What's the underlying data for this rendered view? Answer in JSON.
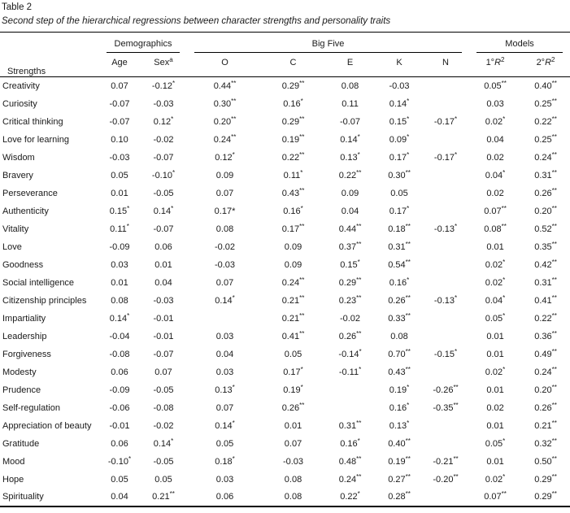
{
  "table": {
    "label": "Table 2",
    "caption": "Second step of the hierarchical regressions between character strengths and personality traits",
    "strengths_header": "Strengths",
    "groups": [
      {
        "label": "Demographics",
        "span": 2
      },
      {
        "label": "Big Five",
        "span": 5
      },
      {
        "label": "Models",
        "span": 2
      }
    ],
    "columns": [
      {
        "id": "age",
        "label": "Age"
      },
      {
        "id": "sex",
        "label": "Sex",
        "sup": "a"
      },
      {
        "id": "o",
        "label": "O"
      },
      {
        "id": "c",
        "label": "C"
      },
      {
        "id": "e",
        "label": "E"
      },
      {
        "id": "k",
        "label": "K"
      },
      {
        "id": "n",
        "label": "N"
      },
      {
        "id": "r2-first",
        "pre": "1°",
        "italic": "R",
        "sup": "2"
      },
      {
        "id": "r2-second",
        "pre": "2°",
        "italic": "R",
        "sup": "2"
      }
    ],
    "rows": [
      {
        "strength": "Creativity",
        "cells": [
          {
            "t": "0.07"
          },
          {
            "t": "-0.12",
            "sup": "*"
          },
          {
            "t": "0.44",
            "sup": "**"
          },
          {
            "t": "0.29",
            "sup": "**"
          },
          {
            "t": "0.08"
          },
          {
            "t": "-0.03"
          },
          null,
          {
            "t": "0.05",
            "sup": "**"
          },
          {
            "t": "0.40",
            "sup": "**"
          }
        ]
      },
      {
        "strength": "Curiosity",
        "cells": [
          {
            "t": "-0.07"
          },
          {
            "t": "-0.03"
          },
          {
            "t": "0.30",
            "sup": "**"
          },
          {
            "t": "0.16",
            "sup": "*"
          },
          {
            "t": "0.11"
          },
          {
            "t": "0.14",
            "sup": "*"
          },
          null,
          {
            "t": "0.03"
          },
          {
            "t": "0.25",
            "sup": "**"
          }
        ]
      },
      {
        "strength": "Critical thinking",
        "cells": [
          {
            "t": "-0.07"
          },
          {
            "t": "0.12",
            "sup": "*"
          },
          {
            "t": "0.20",
            "sup": "**"
          },
          {
            "t": "0.29",
            "sup": "**"
          },
          {
            "t": "-0.07"
          },
          {
            "t": "0.15",
            "sup": "*"
          },
          {
            "t": "-0.17",
            "sup": "*"
          },
          {
            "t": "0.02",
            "sup": "*"
          },
          {
            "t": "0.22",
            "sup": "**"
          }
        ]
      },
      {
        "strength": "Love for learning",
        "cells": [
          {
            "t": "0.10"
          },
          {
            "t": "-0.02"
          },
          {
            "t": "0.24",
            "sup": "**"
          },
          {
            "t": "0.19",
            "sup": "**"
          },
          {
            "t": "0.14",
            "sup": "*"
          },
          {
            "t": "0.09",
            "sup": "*"
          },
          null,
          {
            "t": "0.04"
          },
          {
            "t": "0.25",
            "sup": "**"
          }
        ]
      },
      {
        "strength": "Wisdom",
        "cells": [
          {
            "t": "-0.03"
          },
          {
            "t": "-0.07"
          },
          {
            "t": "0.12",
            "sup": "*"
          },
          {
            "t": "0.22",
            "sup": "**"
          },
          {
            "t": "0.13",
            "sup": "*"
          },
          {
            "t": "0.17",
            "sup": "*"
          },
          {
            "t": "-0.17",
            "sup": "*"
          },
          {
            "t": "0.02"
          },
          {
            "t": "0.24",
            "sup": "**"
          }
        ]
      },
      {
        "strength": "Bravery",
        "cells": [
          {
            "t": "0.05"
          },
          {
            "t": "-0.10",
            "sup": "*"
          },
          {
            "t": "0.09"
          },
          {
            "t": "0.11",
            "sup": "*"
          },
          {
            "t": "0.22",
            "sup": "**"
          },
          {
            "t": "0.30",
            "sup": "**"
          },
          null,
          {
            "t": "0.04",
            "sup": "*"
          },
          {
            "t": "0.31",
            "sup": "**"
          }
        ]
      },
      {
        "strength": "Perseverance",
        "cells": [
          {
            "t": "0.01"
          },
          {
            "t": "-0.05"
          },
          {
            "t": "0.07"
          },
          {
            "t": "0.43",
            "sup": "**"
          },
          {
            "t": "0.09"
          },
          {
            "t": "0.05"
          },
          null,
          {
            "t": "0.02"
          },
          {
            "t": "0.26",
            "sup": "**"
          }
        ]
      },
      {
        "strength": "Authenticity",
        "cells": [
          {
            "t": "0.15",
            "sup": "*"
          },
          {
            "t": "0.14",
            "sup": "*"
          },
          {
            "t": "0.17*"
          },
          {
            "t": "0.16",
            "sup": "*"
          },
          {
            "t": "0.04"
          },
          {
            "t": "0.17",
            "sup": "*"
          },
          null,
          {
            "t": "0.07",
            "sup": "**"
          },
          {
            "t": "0.20",
            "sup": "**"
          }
        ]
      },
      {
        "strength": "Vitality",
        "cells": [
          {
            "t": "0.11",
            "sup": "*"
          },
          {
            "t": "-0.07"
          },
          {
            "t": "0.08"
          },
          {
            "t": "0.17",
            "sup": "**"
          },
          {
            "t": "0.44",
            "sup": "**"
          },
          {
            "t": "0.18",
            "sup": "**"
          },
          {
            "t": "-0.13",
            "sup": "*"
          },
          {
            "t": "0.08",
            "sup": "**"
          },
          {
            "t": "0.52",
            "sup": "**"
          }
        ]
      },
      {
        "strength": "Love",
        "cells": [
          {
            "t": "-0.09"
          },
          {
            "t": "0.06"
          },
          {
            "t": "-0.02"
          },
          {
            "t": "0.09"
          },
          {
            "t": "0.37",
            "sup": "**"
          },
          {
            "t": "0.31",
            "sup": "**"
          },
          null,
          {
            "t": "0.01"
          },
          {
            "t": "0.35",
            "sup": "**"
          }
        ]
      },
      {
        "strength": "Goodness",
        "cells": [
          {
            "t": "0.03"
          },
          {
            "t": "0.01"
          },
          {
            "t": "-0.03"
          },
          {
            "t": "0.09"
          },
          {
            "t": "0.15",
            "sup": "*"
          },
          {
            "t": "0.54",
            "sup": "**"
          },
          null,
          {
            "t": "0.02",
            "sup": "*"
          },
          {
            "t": "0.42",
            "sup": "**"
          }
        ]
      },
      {
        "strength": "Social intelligence",
        "cells": [
          {
            "t": "0.01"
          },
          {
            "t": "0.04"
          },
          {
            "t": "0.07"
          },
          {
            "t": "0.24",
            "sup": "**"
          },
          {
            "t": "0.29",
            "sup": "**"
          },
          {
            "t": "0.16",
            "sup": "*"
          },
          null,
          {
            "t": "0.02",
            "sup": "*"
          },
          {
            "t": "0.31",
            "sup": "**"
          }
        ]
      },
      {
        "strength": "Citizenship principles",
        "cells": [
          {
            "t": "0.08"
          },
          {
            "t": "-0.03"
          },
          {
            "t": "0.14",
            "sup": "*"
          },
          {
            "t": "0.21",
            "sup": "**"
          },
          {
            "t": "0.23",
            "sup": "**"
          },
          {
            "t": "0.26",
            "sup": "**"
          },
          {
            "t": "-0.13",
            "sup": "*"
          },
          {
            "t": "0.04",
            "sup": "*"
          },
          {
            "t": "0.41",
            "sup": "**"
          }
        ]
      },
      {
        "strength": "Impartiality",
        "cells": [
          {
            "t": "0.14",
            "sup": "*"
          },
          {
            "t": "-0.01"
          },
          null,
          {
            "t": "0.21",
            "sup": "**"
          },
          {
            "t": "-0.02"
          },
          {
            "t": "0.33",
            "sup": "**"
          },
          null,
          {
            "t": "0.05",
            "sup": "*"
          },
          {
            "t": "0.22",
            "sup": "**"
          }
        ]
      },
      {
        "strength": "Leadership",
        "cells": [
          {
            "t": "-0.04"
          },
          {
            "t": "-0.01"
          },
          {
            "t": "0.03"
          },
          {
            "t": "0.41",
            "sup": "**"
          },
          {
            "t": "0.26",
            "sup": "**"
          },
          {
            "t": "0.08"
          },
          null,
          {
            "t": "0.01"
          },
          {
            "t": "0.36",
            "sup": "**"
          }
        ]
      },
      {
        "strength": "Forgiveness",
        "cells": [
          {
            "t": "-0.08"
          },
          {
            "t": "-0.07"
          },
          {
            "t": "0.04"
          },
          {
            "t": "0.05"
          },
          {
            "t": "-0.14",
            "sup": "*"
          },
          {
            "t": "0.70",
            "sup": "**"
          },
          {
            "t": "-0.15",
            "sup": "*"
          },
          {
            "t": "0.01"
          },
          {
            "t": "0.49",
            "sup": "**"
          }
        ]
      },
      {
        "strength": "Modesty",
        "cells": [
          {
            "t": "0.06"
          },
          {
            "t": "0.07"
          },
          {
            "t": "0.03"
          },
          {
            "t": "0.17",
            "sup": "*"
          },
          {
            "t": "-0.11",
            "sup": "*"
          },
          {
            "t": "0.43",
            "sup": "**"
          },
          null,
          {
            "t": "0.02",
            "sup": "*"
          },
          {
            "t": "0.24",
            "sup": "**"
          }
        ]
      },
      {
        "strength": "Prudence",
        "cells": [
          {
            "t": "-0.09"
          },
          {
            "t": "-0.05"
          },
          {
            "t": "0.13",
            "sup": "*"
          },
          {
            "t": "0.19",
            "sup": "*"
          },
          null,
          {
            "t": "0.19",
            "sup": "*"
          },
          {
            "t": "-0.26",
            "sup": "**"
          },
          {
            "t": "0.01"
          },
          {
            "t": "0.20",
            "sup": "**"
          }
        ]
      },
      {
        "strength": "Self-regulation",
        "cells": [
          {
            "t": "-0.06"
          },
          {
            "t": "-0.08"
          },
          {
            "t": "0.07"
          },
          {
            "t": "0.26",
            "sup": "**"
          },
          null,
          {
            "t": "0.16",
            "sup": "*"
          },
          {
            "t": "-0.35",
            "sup": "**"
          },
          {
            "t": "0.02"
          },
          {
            "t": "0.26",
            "sup": "**"
          }
        ]
      },
      {
        "strength": "Appreciation of beauty",
        "cells": [
          {
            "t": "-0.01"
          },
          {
            "t": "-0.02"
          },
          {
            "t": "0.14",
            "sup": "*"
          },
          {
            "t": "0.01"
          },
          {
            "t": "0.31",
            "sup": "**"
          },
          {
            "t": "0.13",
            "sup": "*"
          },
          null,
          {
            "t": "0.01"
          },
          {
            "t": "0.21",
            "sup": "**"
          }
        ]
      },
      {
        "strength": "Gratitude",
        "cells": [
          {
            "t": "0.06"
          },
          {
            "t": "0.14",
            "sup": "*"
          },
          {
            "t": "0.05"
          },
          {
            "t": "0.07"
          },
          {
            "t": "0.16",
            "sup": "*"
          },
          {
            "t": "0.40",
            "sup": "**"
          },
          null,
          {
            "t": "0.05",
            "sup": "*"
          },
          {
            "t": "0.32",
            "sup": "**"
          }
        ]
      },
      {
        "strength": "Mood",
        "cells": [
          {
            "t": "-0.10",
            "sup": "*"
          },
          {
            "t": "-0.05"
          },
          {
            "t": "0.18",
            "sup": "*"
          },
          {
            "t": "-0.03"
          },
          {
            "t": "0.48",
            "sup": "**"
          },
          {
            "t": "0.19",
            "sup": "**"
          },
          {
            "t": "-0.21",
            "sup": "**"
          },
          {
            "t": "0.01"
          },
          {
            "t": "0.50",
            "sup": "**"
          }
        ]
      },
      {
        "strength": "Hope",
        "cells": [
          {
            "t": "0.05"
          },
          {
            "t": "0.05"
          },
          {
            "t": "0.03"
          },
          {
            "t": "0.08"
          },
          {
            "t": "0.24",
            "sup": "**"
          },
          {
            "t": "0.27",
            "sup": "**"
          },
          {
            "t": "-0.20",
            "sup": "**"
          },
          {
            "t": "0.02",
            "sup": "*"
          },
          {
            "t": "0.29",
            "sup": "**"
          }
        ]
      },
      {
        "strength": "Spirituality",
        "cells": [
          {
            "t": "0.04"
          },
          {
            "t": "0.21",
            "sup": "**"
          },
          {
            "t": "0.06"
          },
          {
            "t": "0.08"
          },
          {
            "t": "0.22",
            "sup": "*"
          },
          {
            "t": "0.28",
            "sup": "**"
          },
          null,
          {
            "t": "0.07",
            "sup": "**"
          },
          {
            "t": "0.29",
            "sup": "**"
          }
        ]
      }
    ]
  }
}
